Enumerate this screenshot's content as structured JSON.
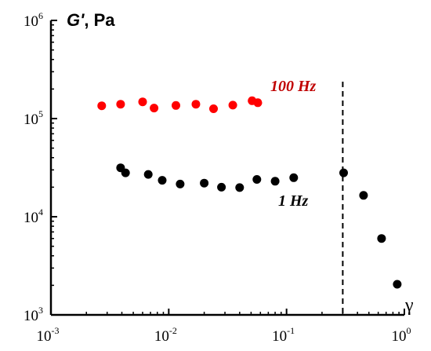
{
  "chart_data": {
    "type": "scatter",
    "x_scale": "log",
    "y_scale": "log",
    "xlim": [
      0.001,
      1
    ],
    "ylim": [
      1000,
      1000000
    ],
    "x_ticks": [
      {
        "value": 0.001,
        "base": "10",
        "exp": "-3"
      },
      {
        "value": 0.01,
        "base": "10",
        "exp": "-2"
      },
      {
        "value": 0.1,
        "base": "10",
        "exp": "-1"
      },
      {
        "value": 1,
        "base": "10",
        "exp": "0"
      }
    ],
    "y_ticks": [
      {
        "value": 1000,
        "base": "10",
        "exp": "3"
      },
      {
        "value": 10000,
        "base": "10",
        "exp": "4"
      },
      {
        "value": 100000,
        "base": "10",
        "exp": "5"
      },
      {
        "value": 1000000,
        "base": "10",
        "exp": "6"
      }
    ],
    "ylabel_main": "G'",
    "ylabel_unit": ", Pa",
    "xlabel": "γ",
    "grid": false,
    "vline_x": 0.3,
    "series": [
      {
        "name": "100 Hz",
        "color": "#ff0000",
        "label_color": "#c00000",
        "points": [
          {
            "x": 0.0027,
            "y": 135000
          },
          {
            "x": 0.0039,
            "y": 140000
          },
          {
            "x": 0.006,
            "y": 148000
          },
          {
            "x": 0.0075,
            "y": 128000
          },
          {
            "x": 0.0115,
            "y": 136000
          },
          {
            "x": 0.017,
            "y": 140000
          },
          {
            "x": 0.024,
            "y": 126000
          },
          {
            "x": 0.035,
            "y": 137000
          },
          {
            "x": 0.051,
            "y": 152000
          },
          {
            "x": 0.057,
            "y": 145000
          }
        ]
      },
      {
        "name": "1 Hz",
        "color": "#000000",
        "label_color": "#000000",
        "points": [
          {
            "x": 0.0039,
            "y": 31500
          },
          {
            "x": 0.0043,
            "y": 28000
          },
          {
            "x": 0.0067,
            "y": 27000
          },
          {
            "x": 0.0088,
            "y": 23500
          },
          {
            "x": 0.0125,
            "y": 21500
          },
          {
            "x": 0.02,
            "y": 22000
          },
          {
            "x": 0.028,
            "y": 20000
          },
          {
            "x": 0.04,
            "y": 19800
          },
          {
            "x": 0.056,
            "y": 24000
          },
          {
            "x": 0.08,
            "y": 23000
          },
          {
            "x": 0.115,
            "y": 25000
          },
          {
            "x": 0.305,
            "y": 28000
          },
          {
            "x": 0.45,
            "y": 16500
          },
          {
            "x": 0.64,
            "y": 6000
          },
          {
            "x": 0.87,
            "y": 2050
          }
        ]
      }
    ]
  }
}
